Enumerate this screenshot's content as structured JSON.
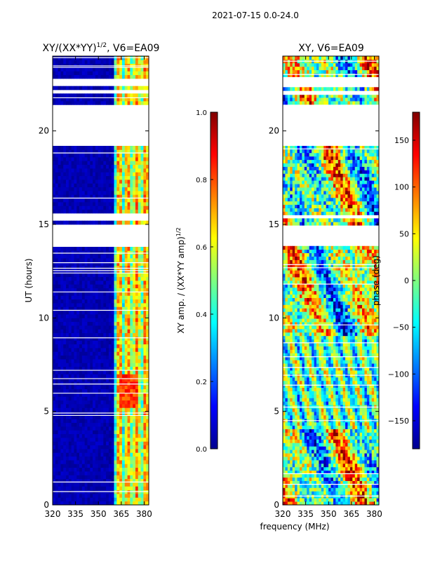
{
  "figure": {
    "suptitle": "2021-07-15 0.0-24.0",
    "xlabel": "frequency (MHz)"
  },
  "chart_data": [
    {
      "type": "heatmap",
      "id": "amp",
      "title": "XY/(XX*YY)",
      "title_exponent": "1/2",
      "title_suffix": ", V6=EA09",
      "xlabel": "frequency (MHz)",
      "ylabel": "UT (hours)",
      "xlim": [
        320,
        383
      ],
      "ylim": [
        0,
        24
      ],
      "xticks": [
        320,
        335,
        350,
        365,
        380
      ],
      "yticks": [
        0,
        5,
        10,
        15,
        20
      ],
      "data_columns_MHz": [
        360,
        383
      ],
      "flagged_ut_gaps_hours": [
        [
          13.8,
          15.0
        ],
        [
          15.3,
          15.5
        ],
        [
          19.2,
          21.5
        ],
        [
          22.0,
          22.2
        ],
        [
          22.4,
          22.8
        ]
      ],
      "colorbar": {
        "label": "XY amp. / (XX*YY amp)",
        "label_exponent": "1/2",
        "range": [
          0.0,
          1.0
        ],
        "ticks": [
          "0.0",
          "0.2",
          "0.4",
          "0.6",
          "0.8",
          "1.0"
        ],
        "cmap": "jet"
      }
    },
    {
      "type": "heatmap",
      "id": "phase",
      "title": "XY, V6=EA09",
      "xlabel": "frequency (MHz)",
      "ylabel": "",
      "xlim": [
        320,
        383
      ],
      "ylim": [
        0,
        24
      ],
      "xticks": [
        320,
        335,
        350,
        365,
        380
      ],
      "yticks": [
        0,
        5,
        10,
        15,
        20
      ],
      "flagged_ut_gaps_hours": [
        [
          13.8,
          15.0
        ],
        [
          15.3,
          15.5
        ],
        [
          19.2,
          21.5
        ],
        [
          22.0,
          22.2
        ],
        [
          22.4,
          22.8
        ]
      ],
      "colorbar": {
        "label": "phase (deg)",
        "range": [
          -180,
          180
        ],
        "ticks": [
          "150",
          "100",
          "50",
          "0",
          "−50",
          "−100",
          "−150"
        ],
        "cmap": "jet"
      }
    }
  ]
}
